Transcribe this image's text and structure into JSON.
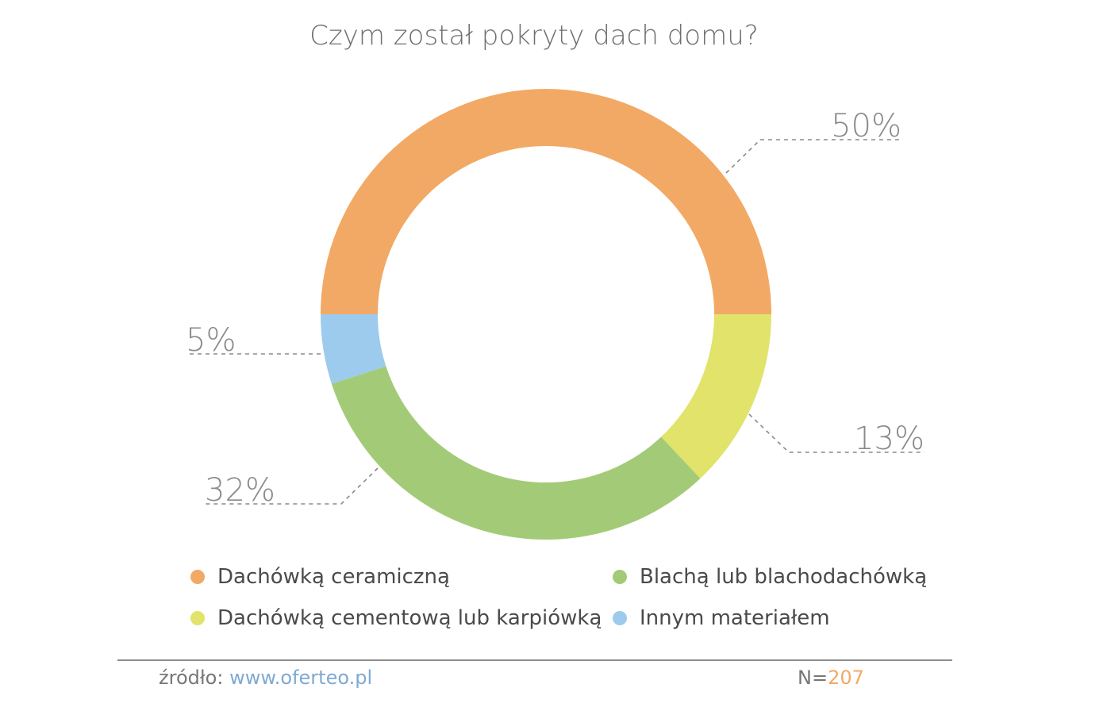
{
  "chart_data": {
    "type": "pie",
    "title": "Czym został pokryty dach domu?",
    "donut": true,
    "categories": [
      "Dachówką ceramiczną",
      "Dachówką cementową lub karpiówką",
      "Blachą lub blachodachówką",
      "Innym materiałem"
    ],
    "values": [
      50,
      13,
      32,
      5
    ],
    "value_labels": [
      "50%",
      "13%",
      "32%",
      "5%"
    ],
    "colors": [
      "#f2a965",
      "#e1e36a",
      "#a3cb77",
      "#9ccbed"
    ],
    "legend_placement": "bottom"
  },
  "legend": {
    "items": [
      {
        "label": "Dachówką ceramiczną",
        "color": "#f2a965"
      },
      {
        "label": "Blachą lub blachodachówką",
        "color": "#a3cb77"
      },
      {
        "label": "Dachówką cementową lub karpiówką",
        "color": "#e1e36a"
      },
      {
        "label": "Innym materiałem",
        "color": "#9ccbed"
      }
    ]
  },
  "footer": {
    "source_label": "źródło:",
    "source_link": "www.oferteo.pl",
    "n_label": "N=",
    "n_value": "207"
  }
}
